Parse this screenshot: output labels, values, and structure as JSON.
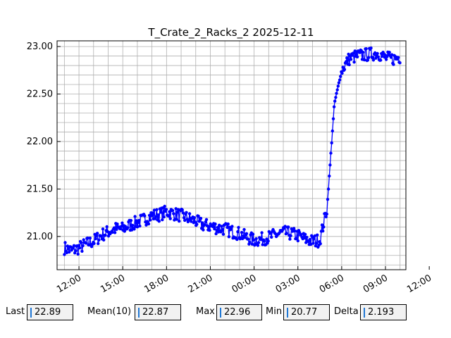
{
  "chart_data": {
    "type": "line",
    "title": "T_Crate_2_Racks_2 2025-12-11",
    "xlabel": "",
    "ylabel": "",
    "x_tick_labels": [
      "12:00",
      "15:00",
      "18:00",
      "21:00",
      "00:00",
      "03:00",
      "06:00",
      "09:00",
      "12:00"
    ],
    "y_tick_labels": [
      "21.00",
      "21.50",
      "22.00",
      "22.50",
      "23.00"
    ],
    "xlim_hours": [
      10.5,
      34.4
    ],
    "ylim": [
      20.65,
      23.06
    ],
    "grid": true,
    "color": "#0000ff",
    "series": [
      {
        "hours": [
          11.0,
          11.5,
          12.0,
          12.5,
          13.0,
          13.5,
          14.0,
          14.5,
          15.0,
          15.5,
          16.0,
          16.5,
          17.0,
          17.5,
          18.0,
          18.5,
          19.0,
          19.5,
          20.0,
          20.5,
          21.0,
          21.5,
          22.0,
          22.5,
          23.0,
          23.5,
          24.0,
          24.5,
          25.0,
          25.5,
          26.0,
          26.5,
          27.0,
          27.5,
          28.0,
          28.5,
          29.0,
          29.5,
          30.0,
          30.5,
          31.0,
          31.5,
          32.0,
          32.5,
          33.0,
          33.5,
          34.0
        ],
        "values": [
          20.88,
          20.85,
          20.88,
          20.92,
          20.95,
          21.01,
          21.05,
          21.08,
          21.08,
          21.12,
          21.15,
          21.18,
          21.22,
          21.23,
          21.26,
          21.24,
          21.22,
          21.19,
          21.16,
          21.12,
          21.11,
          21.09,
          21.08,
          21.05,
          21.03,
          20.99,
          20.96,
          20.97,
          20.99,
          21.02,
          21.04,
          21.03,
          21.01,
          20.97,
          20.95,
          20.96,
          21.3,
          22.4,
          22.75,
          22.87,
          22.9,
          22.91,
          22.92,
          22.93,
          22.88,
          22.87,
          22.89
        ]
      }
    ]
  },
  "stats": {
    "last_label": "Last",
    "last_value": "22.89",
    "mean_label": "Mean(10)",
    "mean_value": "22.87",
    "max_label": "Max",
    "max_value": "22.96",
    "min_label": "Min",
    "min_value": "20.77",
    "delta_label": "Delta",
    "delta_value": "2.193"
  }
}
